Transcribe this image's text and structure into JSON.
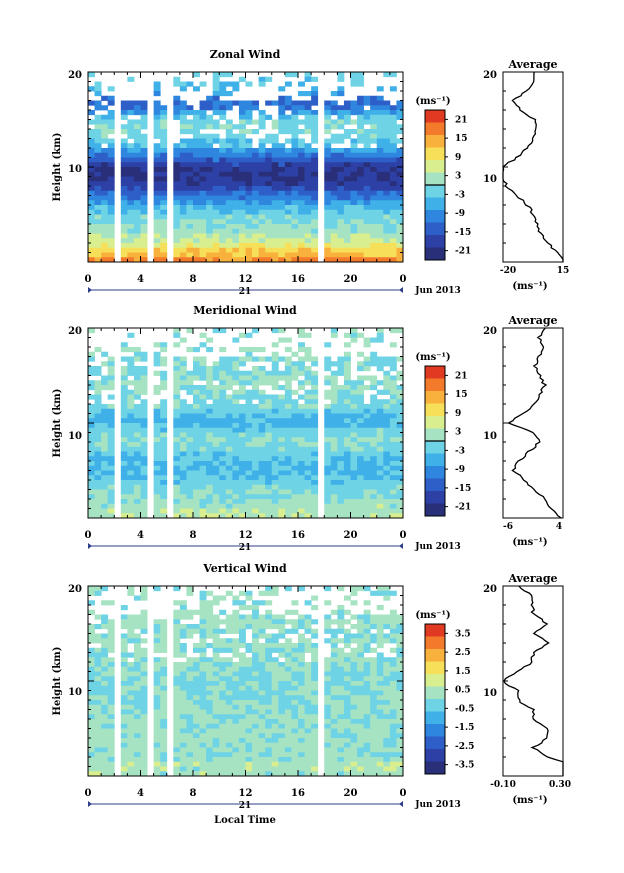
{
  "local_time_label": "Local Time",
  "chart_data": [
    {
      "type": "heatmap",
      "title": "Zonal Wind",
      "ylabel": "Height (km)",
      "ylim": [
        0,
        20
      ],
      "yticks": [
        "10",
        "20"
      ],
      "xlim": [
        0,
        24
      ],
      "xticks": [
        "0",
        "4",
        "8",
        "12",
        "16",
        "20",
        "0"
      ],
      "date_day": "21",
      "date_label": "Jun 2013",
      "colorbar": {
        "unit": "(ms⁻¹)",
        "ticks": [
          "21",
          "15",
          "9",
          "3",
          "-3",
          "-9",
          "-15",
          "-21"
        ],
        "range": [
          -24,
          24
        ]
      },
      "approx_profile": {
        "height_km": [
          0,
          1,
          2,
          3,
          4,
          5,
          6,
          7,
          8,
          9,
          10,
          11,
          12,
          13,
          14,
          15,
          16,
          17,
          18,
          19,
          20
        ],
        "value": [
          18,
          12,
          6,
          2,
          0,
          -2,
          -6,
          -12,
          -18,
          -21,
          -20,
          -12,
          -6,
          -2,
          0,
          -2,
          -10,
          -14,
          -6,
          -3,
          -2
        ]
      },
      "average": {
        "title": "Average",
        "xticks": [
          "-20",
          "15"
        ],
        "xlim": [
          -20,
          15
        ],
        "xunit": "(ms⁻¹)",
        "yticks": [
          "10",
          "20"
        ]
      }
    },
    {
      "type": "heatmap",
      "title": "Meridional Wind",
      "ylabel": "Height (km)",
      "ylim": [
        0,
        20
      ],
      "yticks": [
        "10",
        "20"
      ],
      "xlim": [
        0,
        24
      ],
      "xticks": [
        "0",
        "4",
        "8",
        "12",
        "16",
        "20",
        "0"
      ],
      "date_day": "21",
      "date_label": "Jun 2013",
      "colorbar": {
        "unit": "(ms⁻¹)",
        "ticks": [
          "21",
          "15",
          "9",
          "3",
          "-3",
          "-9",
          "-15",
          "-21"
        ],
        "range": [
          -24,
          24
        ]
      },
      "approx_profile": {
        "height_km": [
          0,
          1,
          2,
          3,
          4,
          5,
          6,
          7,
          8,
          9,
          10,
          11,
          12,
          13,
          14,
          15,
          16,
          17,
          18,
          19,
          20
        ],
        "value": [
          4,
          2,
          1,
          -1,
          -3,
          -5,
          -4,
          -2,
          0,
          -1,
          -6,
          -3,
          -1,
          0,
          1,
          0,
          -1,
          0,
          1,
          0,
          1
        ]
      },
      "average": {
        "title": "Average",
        "xticks": [
          "-6",
          "4"
        ],
        "xlim": [
          -7,
          4.5
        ],
        "xunit": "(ms⁻¹)",
        "yticks": [
          "10",
          "20"
        ]
      }
    },
    {
      "type": "heatmap",
      "title": "Vertical Wind",
      "ylabel": "Height (km)",
      "ylim": [
        0,
        20
      ],
      "yticks": [
        "10",
        "20"
      ],
      "xlim": [
        0,
        24
      ],
      "xticks": [
        "0",
        "4",
        "8",
        "12",
        "16",
        "20",
        "0"
      ],
      "date_day": "21",
      "date_label": "Jun 2013",
      "colorbar": {
        "unit": "(ms⁻¹)",
        "ticks": [
          "3.5",
          "2.5",
          "1.5",
          "0.5",
          "-0.5",
          "-1.5",
          "-2.5",
          "-3.5"
        ],
        "range": [
          -4,
          4
        ]
      },
      "approx_profile": {
        "height_km": [
          0,
          1,
          2,
          3,
          4,
          5,
          6,
          7,
          8,
          9,
          10,
          11,
          12,
          13,
          14,
          15,
          16,
          17,
          18,
          19,
          20
        ],
        "value": [
          0.3,
          0.4,
          0.2,
          0.1,
          0.2,
          0.2,
          0.1,
          0.1,
          0.0,
          0.0,
          -0.1,
          0.0,
          0.1,
          0.1,
          0.2,
          0.1,
          0.2,
          0.1,
          0.1,
          0.1,
          0.0
        ]
      },
      "average": {
        "title": "Average",
        "xticks": [
          "-0.10",
          "0.30"
        ],
        "xlim": [
          -0.1,
          0.3
        ],
        "xunit": "(ms⁻¹)",
        "yticks": [
          "10",
          "20"
        ]
      }
    }
  ]
}
